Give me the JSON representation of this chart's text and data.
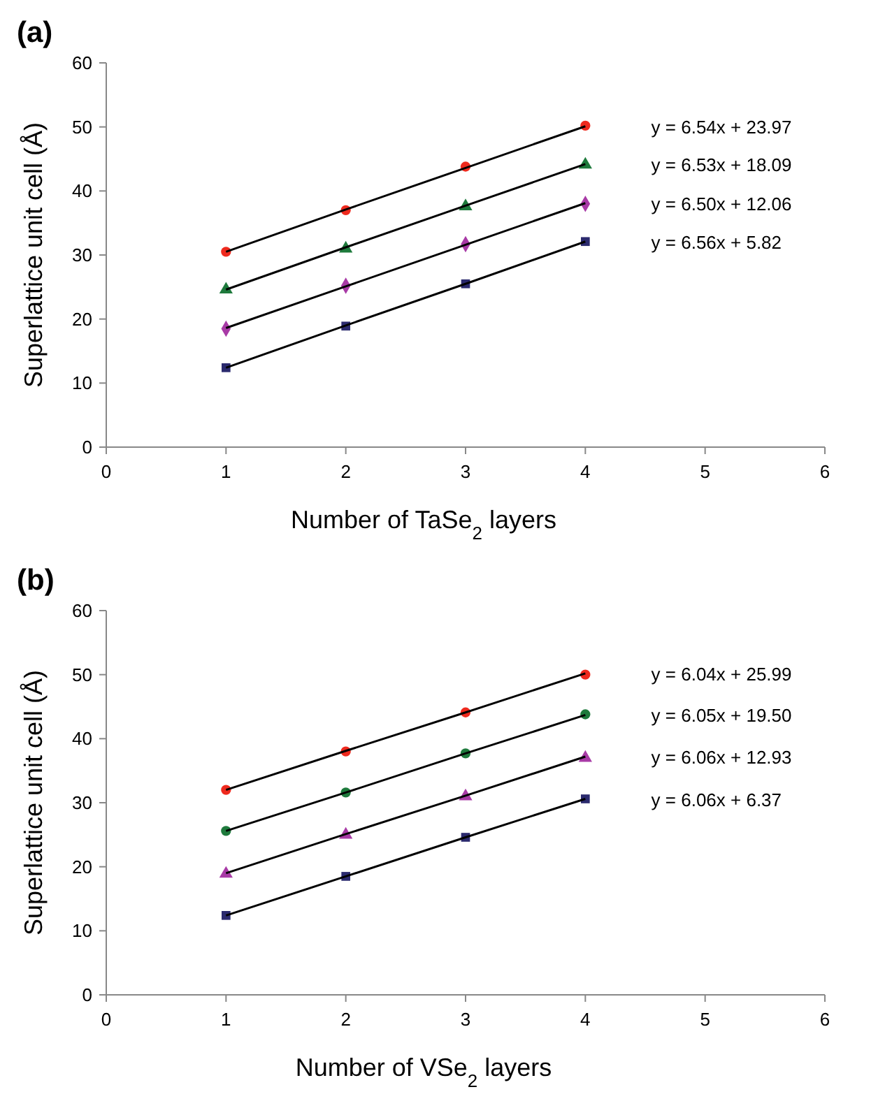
{
  "chart_data": [
    {
      "type": "scatter",
      "title": "(a)",
      "xlabel": "Number of TaSe$_{2}$ layers",
      "ylabel": "Superlattice unit cell (Å)",
      "xlim": [
        0,
        6
      ],
      "xticks": [
        0,
        1,
        2,
        3,
        4,
        5,
        6
      ],
      "ylim": [
        0,
        60
      ],
      "yticks": [
        0,
        10,
        20,
        30,
        40,
        50,
        60
      ],
      "x": [
        1,
        2,
        3,
        4
      ],
      "series": [
        {
          "type": "scatter",
          "marker": "circle",
          "color": "#ee2a1e",
          "values": [
            30.5,
            37,
            43.8,
            50.2
          ]
        },
        {
          "type": "scatter",
          "marker": "triangle",
          "color": "#1e7a3c",
          "values": [
            24.6,
            31,
            37.6,
            44.1
          ]
        },
        {
          "type": "scatter",
          "marker": "diamond",
          "color": "#a83aa6",
          "values": [
            18.5,
            25.2,
            31.7,
            38
          ]
        },
        {
          "type": "scatter",
          "marker": "square",
          "color": "#2b2a6e",
          "values": [
            12.4,
            18.9,
            25.5,
            32.1
          ]
        },
        {
          "type": "line",
          "marker": "none",
          "line_style": "solid",
          "color": "#000000",
          "values": [
            30.5,
            37.1,
            43.6,
            50.1
          ]
        },
        {
          "type": "line",
          "marker": "none",
          "line_style": "solid",
          "color": "#000000",
          "values": [
            24.6,
            31.2,
            37.7,
            44.2
          ]
        },
        {
          "type": "line",
          "marker": "none",
          "line_style": "solid",
          "color": "#000000",
          "values": [
            18.6,
            25.1,
            31.6,
            38.1
          ]
        },
        {
          "type": "line",
          "marker": "none",
          "line_style": "solid",
          "color": "#000000",
          "values": [
            12.4,
            19,
            25.5,
            32.1
          ]
        }
      ],
      "annotations": [
        "y = 6.54x + 23.97",
        "y = 6.53x + 18.09",
        "y = 6.50x + 12.06",
        "y = 6.56x + 5.82"
      ]
    },
    {
      "type": "scatter",
      "title": "(b)",
      "xlabel": "Number of VSe$_{2}$ layers",
      "ylabel": "Superlattice unit cell (Å)",
      "xlim": [
        0,
        6
      ],
      "xticks": [
        0,
        1,
        2,
        3,
        4,
        5,
        6
      ],
      "ylim": [
        0,
        60
      ],
      "yticks": [
        0,
        10,
        20,
        30,
        40,
        50,
        60
      ],
      "x": [
        1,
        2,
        3,
        4
      ],
      "series": [
        {
          "type": "scatter",
          "marker": "circle",
          "color": "#ee2a1e",
          "values": [
            32,
            38,
            44.1,
            50
          ]
        },
        {
          "type": "scatter",
          "marker": "circle",
          "color": "#1e7a3c",
          "values": [
            25.6,
            31.6,
            37.7,
            43.8
          ]
        },
        {
          "type": "scatter",
          "marker": "triangle",
          "color": "#a83aa6",
          "values": [
            18.9,
            25,
            31,
            37
          ]
        },
        {
          "type": "scatter",
          "marker": "square",
          "color": "#2b2a6e",
          "values": [
            12.4,
            18.5,
            24.6,
            30.6
          ]
        },
        {
          "type": "line",
          "marker": "none",
          "line_style": "solid",
          "color": "#000000",
          "values": [
            32,
            38.1,
            44.1,
            50.2
          ]
        },
        {
          "type": "line",
          "marker": "none",
          "line_style": "solid",
          "color": "#000000",
          "values": [
            25.6,
            31.6,
            37.7,
            43.7
          ]
        },
        {
          "type": "line",
          "marker": "none",
          "line_style": "solid",
          "color": "#000000",
          "values": [
            19,
            25.1,
            31.1,
            37.2
          ]
        },
        {
          "type": "line",
          "marker": "none",
          "line_style": "solid",
          "color": "#000000",
          "values": [
            12.4,
            18.5,
            24.6,
            30.6
          ]
        }
      ],
      "annotations": [
        "y = 6.04x + 25.99",
        "y = 6.05x + 19.50",
        "y = 6.06x + 12.93",
        "y = 6.06x + 6.37"
      ]
    }
  ]
}
